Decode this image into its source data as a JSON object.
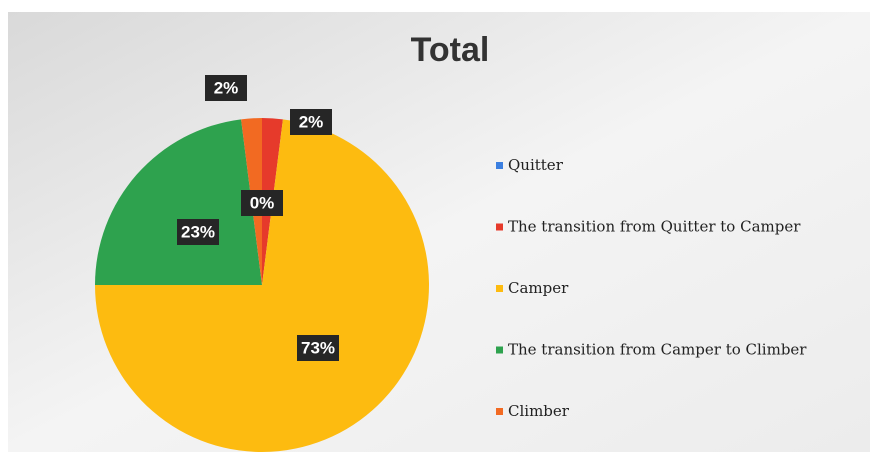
{
  "chart_data": {
    "type": "pie",
    "title": "Total",
    "categories": [
      "Quitter",
      "The transition from Quitter to Camper",
      "Camper",
      "The transition from Camper to Climber",
      "Climber"
    ],
    "values": [
      0,
      2,
      73,
      23,
      2
    ],
    "value_labels": [
      "0%",
      "2%",
      "73%",
      "23%",
      "2%"
    ],
    "colors": [
      "#3b7fe0",
      "#e63a2b",
      "#fdbb10",
      "#2ea24e",
      "#f26a22"
    ],
    "legend": "right"
  }
}
